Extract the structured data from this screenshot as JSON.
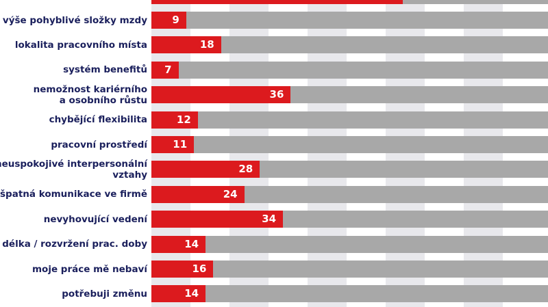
{
  "colors": {
    "bar": "#dc1a1e",
    "track": "#a8a8a8",
    "label": "#1a1f5c",
    "stripe": "#e8e8ec"
  },
  "chart_data": {
    "type": "bar",
    "orientation": "horizontal",
    "title": "",
    "xlabel": "",
    "ylabel": "",
    "xlim": [
      0,
      102
    ],
    "grid": "alternating column stripes",
    "categories": [
      "(partially visible top row)",
      "výše pohyblivé složky mzdy",
      "lokalita pracovního místa",
      "systém benefitů",
      "nemožnost kariérního a osobního růstu",
      "chybějící flexibilita",
      "pracovní prostředí",
      "neuspokojivé interpersonální vztahy",
      "špatná komunikace ve firmě",
      "nevyhovující vedení",
      "délka / rozvržení prac. doby",
      "moje práce mě nebaví",
      "potřebuji změnu"
    ],
    "values": [
      65,
      9,
      18,
      7,
      36,
      12,
      11,
      28,
      24,
      34,
      14,
      16,
      14
    ]
  },
  "rows": [
    {
      "label": "",
      "value": 65,
      "show_value": ""
    },
    {
      "label": "výše pohyblivé složky mzdy",
      "value": 9,
      "show_value": "9"
    },
    {
      "label": "lokalita pracovního místa",
      "value": 18,
      "show_value": "18"
    },
    {
      "label": "systém benefitů",
      "value": 7,
      "show_value": "7"
    },
    {
      "label": "nemožnost kariérního\na osobního růstu",
      "value": 36,
      "show_value": "36"
    },
    {
      "label": "chybějící flexibilita",
      "value": 12,
      "show_value": "12"
    },
    {
      "label": "pracovní prostředí",
      "value": 11,
      "show_value": "11"
    },
    {
      "label": "neuspokojivé interpersonální\nvztahy",
      "value": 28,
      "show_value": "28"
    },
    {
      "label": "špatná komunikace ve firmě",
      "value": 24,
      "show_value": "24"
    },
    {
      "label": "nevyhovující vedení",
      "value": 34,
      "show_value": "34"
    },
    {
      "label": "délka / rozvržení prac. doby",
      "value": 14,
      "show_value": "14"
    },
    {
      "label": "moje práce mě nebaví",
      "value": 16,
      "show_value": "16"
    },
    {
      "label": "potřebuji změnu",
      "value": 14,
      "show_value": "14"
    }
  ]
}
